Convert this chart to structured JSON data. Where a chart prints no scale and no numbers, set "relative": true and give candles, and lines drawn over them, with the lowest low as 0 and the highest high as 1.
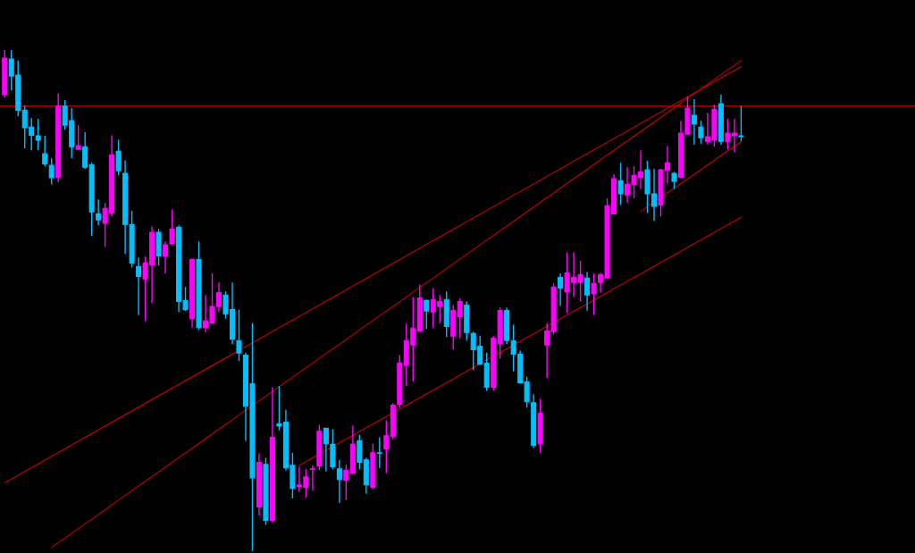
{
  "chart_data": {
    "type": "candlestick",
    "relative": true,
    "categories": [
      null,
      null,
      null,
      null,
      null,
      null,
      null,
      null,
      null,
      null,
      null,
      null,
      null,
      null,
      null,
      null,
      null,
      null,
      null,
      null,
      null,
      null,
      null,
      null,
      null,
      null,
      null,
      null,
      null,
      null,
      null,
      null,
      null,
      null,
      null,
      null,
      null,
      null,
      null,
      null,
      null,
      null,
      null,
      null,
      null,
      null,
      null,
      null,
      null,
      null,
      null,
      null,
      null,
      null,
      null,
      null,
      null,
      null,
      null,
      null,
      null,
      null,
      null,
      null,
      null,
      null,
      null,
      null,
      null,
      null,
      null,
      null,
      null,
      null,
      null,
      null,
      null,
      null,
      null,
      null,
      null,
      null,
      null,
      null,
      null,
      null,
      null,
      null,
      null,
      null,
      null,
      null,
      null,
      null,
      null,
      null,
      null,
      null,
      null,
      null,
      null,
      null,
      null,
      null,
      null,
      null,
      null,
      null,
      null,
      null,
      null
    ],
    "ohlc": [
      [
        0.911,
        1.0,
        0.905,
        0.984
      ],
      [
        0.982,
        1.0,
        0.92,
        0.948
      ],
      [
        0.95,
        0.979,
        0.868,
        0.88
      ],
      [
        0.88,
        0.889,
        0.804,
        0.845
      ],
      [
        0.846,
        0.864,
        0.8,
        0.83
      ],
      [
        0.829,
        0.863,
        0.8,
        0.82
      ],
      [
        0.793,
        0.829,
        0.768,
        0.773
      ],
      [
        0.77,
        0.784,
        0.732,
        0.745
      ],
      [
        0.746,
        0.913,
        0.736,
        0.888
      ],
      [
        0.888,
        0.9,
        0.841,
        0.85
      ],
      [
        0.859,
        0.884,
        0.784,
        0.807
      ],
      [
        0.802,
        0.85,
        0.802,
        0.809
      ],
      [
        0.807,
        0.836,
        0.763,
        0.766
      ],
      [
        0.771,
        0.775,
        0.629,
        0.677
      ],
      [
        0.673,
        0.702,
        0.65,
        0.661
      ],
      [
        0.654,
        0.695,
        0.607,
        0.684
      ],
      [
        0.675,
        0.83,
        0.668,
        0.791
      ],
      [
        0.798,
        0.821,
        0.75,
        0.759
      ],
      [
        0.754,
        0.78,
        0.593,
        0.652
      ],
      [
        0.652,
        0.679,
        0.566,
        0.575
      ],
      [
        0.568,
        0.586,
        0.471,
        0.548
      ],
      [
        0.543,
        0.588,
        0.459,
        0.575
      ],
      [
        0.571,
        0.648,
        0.495,
        0.636
      ],
      [
        0.636,
        0.643,
        0.57,
        0.589
      ],
      [
        0.589,
        0.618,
        0.554,
        0.611
      ],
      [
        0.613,
        0.682,
        0.611,
        0.643
      ],
      [
        0.646,
        0.65,
        0.477,
        0.498
      ],
      [
        0.5,
        0.527,
        0.479,
        0.482
      ],
      [
        0.464,
        0.584,
        0.446,
        0.582
      ],
      [
        0.582,
        0.618,
        0.441,
        0.446
      ],
      [
        0.446,
        0.511,
        0.436,
        0.459
      ],
      [
        0.455,
        0.554,
        0.454,
        0.488
      ],
      [
        0.488,
        0.536,
        0.477,
        0.516
      ],
      [
        0.511,
        0.518,
        0.464,
        0.473
      ],
      [
        0.482,
        0.536,
        0.413,
        0.423
      ],
      [
        0.42,
        0.482,
        0.379,
        0.395
      ],
      [
        0.391,
        0.396,
        0.22,
        0.289
      ],
      [
        0.334,
        0.455,
        0.0,
        0.146
      ],
      [
        0.088,
        0.195,
        0.071,
        0.177
      ],
      [
        0.173,
        0.186,
        0.052,
        0.061
      ],
      [
        0.061,
        0.327,
        0.057,
        0.227
      ],
      [
        0.254,
        0.329,
        0.241,
        0.25
      ],
      [
        0.257,
        0.282,
        0.161,
        0.166
      ],
      [
        0.171,
        0.196,
        0.105,
        0.125
      ],
      [
        0.129,
        0.168,
        0.118,
        0.132
      ],
      [
        0.127,
        0.164,
        0.107,
        0.148
      ],
      [
        0.163,
        0.171,
        0.121,
        0.164
      ],
      [
        0.17,
        0.252,
        0.161,
        0.239
      ],
      [
        0.245,
        0.245,
        0.159,
        0.214
      ],
      [
        0.213,
        0.243,
        0.163,
        0.168
      ],
      [
        0.164,
        0.182,
        0.096,
        0.143
      ],
      [
        0.141,
        0.173,
        0.102,
        0.161
      ],
      [
        0.155,
        0.25,
        0.155,
        0.213
      ],
      [
        0.22,
        0.232,
        0.163,
        0.177
      ],
      [
        0.182,
        0.186,
        0.114,
        0.132
      ],
      [
        0.127,
        0.214,
        0.123,
        0.196
      ],
      [
        0.196,
        0.227,
        0.166,
        0.195
      ],
      [
        0.204,
        0.261,
        0.155,
        0.23
      ],
      [
        0.229,
        0.295,
        0.223,
        0.291
      ],
      [
        0.293,
        0.391,
        0.286,
        0.375
      ],
      [
        0.371,
        0.454,
        0.33,
        0.42
      ],
      [
        0.411,
        0.507,
        0.338,
        0.445
      ],
      [
        0.439,
        0.532,
        0.438,
        0.505
      ],
      [
        0.5,
        0.502,
        0.443,
        0.479
      ],
      [
        0.477,
        0.525,
        0.446,
        0.502
      ],
      [
        0.488,
        0.511,
        0.455,
        0.498
      ],
      [
        0.502,
        0.518,
        0.427,
        0.448
      ],
      [
        0.429,
        0.491,
        0.402,
        0.48
      ],
      [
        0.468,
        0.504,
        0.425,
        0.498
      ],
      [
        0.491,
        0.498,
        0.42,
        0.436
      ],
      [
        0.434,
        0.438,
        0.361,
        0.402
      ],
      [
        0.409,
        0.43,
        0.371,
        0.373
      ],
      [
        0.375,
        0.396,
        0.32,
        0.327
      ],
      [
        0.327,
        0.429,
        0.32,
        0.425
      ],
      [
        0.414,
        0.486,
        0.384,
        0.48
      ],
      [
        0.48,
        0.486,
        0.413,
        0.42
      ],
      [
        0.42,
        0.452,
        0.359,
        0.393
      ],
      [
        0.393,
        0.4,
        0.334,
        0.336
      ],
      [
        0.338,
        0.348,
        0.286,
        0.298
      ],
      [
        0.296,
        0.313,
        0.205,
        0.211
      ],
      [
        0.214,
        0.304,
        0.196,
        0.275
      ],
      [
        0.411,
        0.455,
        0.345,
        0.439
      ],
      [
        0.438,
        0.534,
        0.432,
        0.527
      ],
      [
        0.546,
        0.554,
        0.489,
        0.525
      ],
      [
        0.518,
        0.596,
        0.475,
        0.555
      ],
      [
        0.536,
        0.596,
        0.507,
        0.546
      ],
      [
        0.536,
        0.579,
        0.498,
        0.552
      ],
      [
        0.545,
        0.557,
        0.48,
        0.511
      ],
      [
        0.514,
        0.554,
        0.471,
        0.534
      ],
      [
        0.536,
        0.555,
        0.516,
        0.552
      ],
      [
        0.545,
        0.704,
        0.545,
        0.689
      ],
      [
        0.673,
        0.752,
        0.673,
        0.743
      ],
      [
        0.739,
        0.775,
        0.691,
        0.713
      ],
      [
        0.711,
        0.766,
        0.695,
        0.732
      ],
      [
        0.732,
        0.768,
        0.704,
        0.75
      ],
      [
        0.746,
        0.8,
        0.723,
        0.757
      ],
      [
        0.761,
        0.779,
        0.675,
        0.713
      ],
      [
        0.713,
        0.763,
        0.659,
        0.688
      ],
      [
        0.691,
        0.763,
        0.668,
        0.761
      ],
      [
        0.761,
        0.809,
        0.734,
        0.775
      ],
      [
        0.754,
        0.757,
        0.723,
        0.738
      ],
      [
        0.746,
        0.859,
        0.746,
        0.834
      ],
      [
        0.832,
        0.907,
        0.832,
        0.884
      ],
      [
        0.87,
        0.902,
        0.811,
        0.852
      ],
      [
        0.846,
        0.859,
        0.813,
        0.825
      ],
      [
        0.818,
        0.875,
        0.811,
        0.827
      ],
      [
        0.82,
        0.891,
        0.807,
        0.882
      ],
      [
        0.893,
        0.911,
        0.811,
        0.818
      ],
      [
        0.818,
        0.863,
        0.802,
        0.834
      ],
      [
        0.829,
        0.863,
        0.796,
        0.834
      ],
      [
        0.829,
        0.888,
        0.818,
        0.827
      ]
    ],
    "colors": [
      "#ff00ff",
      "#00bfff",
      "#00bfff",
      "#00bfff",
      "#00bfff",
      "#00bfff",
      "#00bfff",
      "#00bfff",
      "#ff00ff",
      "#00bfff",
      "#00bfff",
      "#ff00ff",
      "#00bfff",
      "#00bfff",
      "#00bfff",
      "#ff00ff",
      "#ff00ff",
      "#00bfff",
      "#00bfff",
      "#00bfff",
      "#00bfff",
      "#ff00ff",
      "#ff00ff",
      "#00bfff",
      "#ff00ff",
      "#ff00ff",
      "#00bfff",
      "#00bfff",
      "#ff00ff",
      "#00bfff",
      "#ff00ff",
      "#ff00ff",
      "#ff00ff",
      "#00bfff",
      "#00bfff",
      "#00bfff",
      "#00bfff",
      "#00bfff",
      "#ff00ff",
      "#00bfff",
      "#ff00ff",
      "#00bfff",
      "#00bfff",
      "#00bfff",
      "#ff00ff",
      "#ff00ff",
      "#ff00ff",
      "#ff00ff",
      "#00bfff",
      "#00bfff",
      "#00bfff",
      "#ff00ff",
      "#ff00ff",
      "#00bfff",
      "#00bfff",
      "#ff00ff",
      "#00bfff",
      "#ff00ff",
      "#ff00ff",
      "#ff00ff",
      "#ff00ff",
      "#ff00ff",
      "#ff00ff",
      "#00bfff",
      "#ff00ff",
      "#ff00ff",
      "#00bfff",
      "#ff00ff",
      "#ff00ff",
      "#00bfff",
      "#00bfff",
      "#00bfff",
      "#00bfff",
      "#ff00ff",
      "#ff00ff",
      "#00bfff",
      "#00bfff",
      "#00bfff",
      "#00bfff",
      "#00bfff",
      "#ff00ff",
      "#ff00ff",
      "#ff00ff",
      "#00bfff",
      "#ff00ff",
      "#ff00ff",
      "#ff00ff",
      "#00bfff",
      "#ff00ff",
      "#ff00ff",
      "#ff00ff",
      "#ff00ff",
      "#00bfff",
      "#ff00ff",
      "#ff00ff",
      "#ff00ff",
      "#00bfff",
      "#00bfff",
      "#ff00ff",
      "#ff00ff",
      "#00bfff",
      "#ff00ff",
      "#ff00ff",
      "#00bfff",
      "#00bfff",
      "#ff00ff",
      "#ff00ff",
      "#00bfff",
      "#ff00ff",
      "#ff00ff",
      "#00bfff"
    ],
    "series": [
      {
        "type": "line",
        "color": "#cc0000",
        "values": [
          0.136,
          null,
          null,
          null,
          null,
          null,
          null,
          null,
          null,
          null,
          null,
          null,
          null,
          null,
          null,
          null,
          null,
          null,
          null,
          null,
          null,
          null,
          null,
          null,
          null,
          null,
          null,
          null,
          null,
          null,
          null,
          null,
          null,
          null,
          null,
          null,
          null,
          null,
          null,
          null,
          null,
          null,
          null,
          null,
          null,
          null,
          null,
          null,
          null,
          null,
          null,
          null,
          null,
          null,
          null,
          null,
          null,
          null,
          null,
          null,
          null,
          null,
          null,
          null,
          null,
          null,
          null,
          null,
          null,
          null,
          null,
          null,
          null,
          null,
          null,
          null,
          null,
          null,
          null,
          null,
          null,
          null,
          null,
          null,
          null,
          null,
          null,
          null,
          null,
          null,
          null,
          null,
          null,
          null,
          null,
          null,
          null,
          null,
          null,
          null,
          null,
          null,
          null,
          null,
          null,
          null,
          null,
          null,
          null,
          null,
          0.967
        ]
      },
      {
        "type": "line",
        "color": "#cc0000",
        "values": [
          null,
          null,
          null,
          null,
          null,
          null,
          null,
          0.007,
          null,
          null,
          null,
          null,
          null,
          null,
          null,
          null,
          null,
          null,
          null,
          null,
          null,
          null,
          null,
          null,
          null,
          null,
          null,
          null,
          null,
          null,
          null,
          null,
          null,
          null,
          null,
          null,
          null,
          null,
          null,
          null,
          null,
          null,
          null,
          null,
          null,
          null,
          null,
          null,
          null,
          null,
          null,
          null,
          null,
          null,
          null,
          null,
          null,
          null,
          null,
          null,
          null,
          null,
          null,
          null,
          null,
          null,
          null,
          null,
          null,
          null,
          null,
          null,
          null,
          null,
          null,
          null,
          null,
          null,
          null,
          null,
          null,
          null,
          null,
          null,
          null,
          null,
          null,
          null,
          null,
          null,
          null,
          null,
          null,
          null,
          null,
          null,
          null,
          null,
          null,
          null,
          null,
          null,
          null,
          null,
          null,
          null,
          null,
          null,
          null,
          null,
          0.979
        ]
      },
      {
        "type": "line",
        "color": "#cc0000",
        "values": [
          null,
          null,
          null,
          null,
          null,
          null,
          null,
          null,
          null,
          null,
          null,
          null,
          null,
          null,
          null,
          null,
          null,
          null,
          null,
          null,
          null,
          null,
          null,
          null,
          null,
          null,
          null,
          null,
          null,
          null,
          null,
          null,
          null,
          null,
          null,
          null,
          null,
          null,
          null,
          null,
          null,
          null,
          null,
          null,
          0.171,
          null,
          null,
          null,
          null,
          null,
          null,
          null,
          null,
          null,
          null,
          null,
          null,
          null,
          null,
          null,
          null,
          null,
          null,
          null,
          null,
          null,
          null,
          null,
          null,
          null,
          null,
          null,
          null,
          null,
          null,
          null,
          null,
          null,
          null,
          null,
          null,
          null,
          null,
          null,
          null,
          null,
          null,
          null,
          null,
          null,
          null,
          null,
          null,
          null,
          null,
          null,
          null,
          null,
          null,
          null,
          null,
          null,
          null,
          null,
          null,
          null,
          null,
          null,
          null,
          null,
          0.666
        ]
      },
      {
        "type": "line",
        "color": "#cc0000",
        "values": [
          null,
          null,
          null,
          null,
          null,
          null,
          null,
          null,
          null,
          null,
          null,
          null,
          null,
          null,
          null,
          null,
          null,
          null,
          null,
          null,
          null,
          null,
          null,
          null,
          null,
          null,
          null,
          null,
          null,
          null,
          null,
          null,
          null,
          null,
          null,
          null,
          null,
          null,
          null,
          null,
          null,
          null,
          null,
          null,
          null,
          null,
          null,
          null,
          null,
          null,
          null,
          null,
          null,
          null,
          null,
          null,
          null,
          null,
          null,
          null,
          null,
          null,
          null,
          null,
          null,
          null,
          null,
          null,
          null,
          null,
          null,
          null,
          null,
          null,
          null,
          null,
          null,
          null,
          null,
          null,
          null,
          null,
          null,
          null,
          null,
          null,
          null,
          null,
          null,
          null,
          null,
          null,
          null,
          null,
          null,
          0.678,
          null,
          null,
          null,
          null,
          null,
          null,
          null,
          null,
          null,
          null,
          null,
          null,
          null,
          null,
          0.817
        ]
      }
    ],
    "ref_lines": [
      {
        "axis": "y",
        "value": 0.888,
        "color": "#cc0000"
      }
    ]
  }
}
